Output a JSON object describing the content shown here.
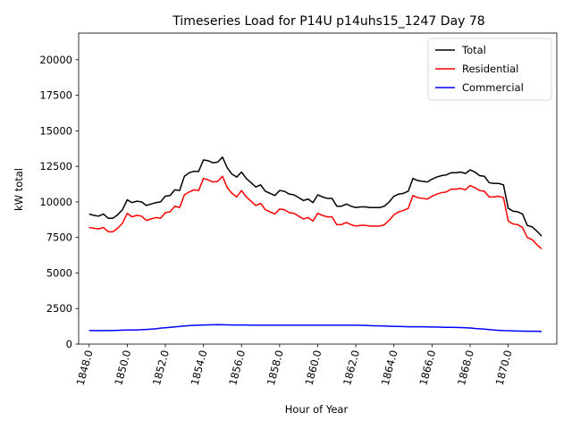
{
  "chart_data": {
    "type": "line",
    "title": "Timeseries Load for P14U p14uhs15_1247  Day 78",
    "xlabel": "Hour of Year",
    "ylabel": "kW total",
    "xlim": [
      1847.45,
      1872.55
    ],
    "ylim": [
      0,
      21875
    ],
    "x_ticks": [
      1848,
      1850,
      1852,
      1854,
      1856,
      1858,
      1860,
      1862,
      1864,
      1866,
      1868,
      1870
    ],
    "x_tick_labels": [
      "1848.0",
      "1850.0",
      "1852.0",
      "1854.0",
      "1856.0",
      "1858.0",
      "1860.0",
      "1862.0",
      "1864.0",
      "1866.0",
      "1868.0",
      "1870.0"
    ],
    "y_ticks": [
      0,
      2500,
      5000,
      7500,
      10000,
      12500,
      15000,
      17500,
      20000
    ],
    "y_tick_labels": [
      "0",
      "2500",
      "5000",
      "7500",
      "10000",
      "12500",
      "15000",
      "17500",
      "20000"
    ],
    "legend_position": "top-right",
    "x_start": 1848.0,
    "x_step": 0.25,
    "series": [
      {
        "name": "Total",
        "color": "#000000",
        "values": [
          9150,
          9050,
          9000,
          9150,
          8850,
          8850,
          9100,
          9450,
          10150,
          9950,
          10050,
          10000,
          9750,
          9850,
          9950,
          10000,
          10400,
          10450,
          10850,
          10800,
          11800,
          12050,
          12150,
          12150,
          12950,
          12900,
          12750,
          12800,
          13150,
          12400,
          11950,
          11750,
          12100,
          11650,
          11350,
          11050,
          11200,
          10750,
          10600,
          10450,
          10800,
          10750,
          10550,
          10500,
          10300,
          10100,
          10200,
          9950,
          10500,
          10350,
          10250,
          10250,
          9700,
          9700,
          9850,
          9700,
          9600,
          9650,
          9650,
          9600,
          9600,
          9600,
          9700,
          10000,
          10400,
          10550,
          10600,
          10750,
          11650,
          11500,
          11450,
          11400,
          11600,
          11750,
          11850,
          11900,
          12050,
          12050,
          12100,
          12000,
          12250,
          12100,
          11850,
          11800,
          11350,
          11300,
          11300,
          11200,
          9550,
          9350,
          9300,
          9150,
          8350,
          8250,
          7950,
          7600
        ]
      },
      {
        "name": "Residential",
        "color": "#ff0000",
        "values": [
          8200,
          8150,
          8100,
          8200,
          7900,
          7900,
          8150,
          8500,
          9200,
          8950,
          9050,
          9000,
          8700,
          8800,
          8900,
          8850,
          9250,
          9300,
          9700,
          9600,
          10500,
          10700,
          10850,
          10800,
          11650,
          11550,
          11400,
          11450,
          11800,
          11000,
          10600,
          10350,
          10800,
          10350,
          10050,
          9750,
          9900,
          9450,
          9300,
          9150,
          9500,
          9450,
          9250,
          9200,
          9000,
          8800,
          8900,
          8650,
          9200,
          9050,
          8950,
          8950,
          8400,
          8400,
          8550,
          8400,
          8300,
          8350,
          8350,
          8300,
          8300,
          8300,
          8400,
          8700,
          9100,
          9300,
          9400,
          9550,
          10450,
          10300,
          10250,
          10200,
          10400,
          10550,
          10650,
          10700,
          10900,
          10900,
          10950,
          10850,
          11150,
          11000,
          10800,
          10750,
          10350,
          10350,
          10400,
          10300,
          8650,
          8450,
          8400,
          8200,
          7500,
          7350,
          7000,
          6700
        ]
      },
      {
        "name": "Commercial",
        "color": "#0000ff",
        "values": [
          950,
          950,
          950,
          950,
          950,
          960,
          970,
          980,
          990,
          990,
          1000,
          1010,
          1030,
          1050,
          1080,
          1120,
          1150,
          1180,
          1210,
          1240,
          1270,
          1300,
          1320,
          1330,
          1340,
          1350,
          1360,
          1370,
          1360,
          1350,
          1340,
          1340,
          1340,
          1340,
          1330,
          1330,
          1330,
          1330,
          1330,
          1330,
          1330,
          1330,
          1330,
          1330,
          1330,
          1330,
          1330,
          1330,
          1330,
          1330,
          1330,
          1330,
          1330,
          1330,
          1330,
          1330,
          1330,
          1320,
          1310,
          1300,
          1290,
          1280,
          1270,
          1260,
          1250,
          1240,
          1230,
          1220,
          1220,
          1220,
          1220,
          1210,
          1200,
          1200,
          1190,
          1180,
          1180,
          1170,
          1160,
          1150,
          1130,
          1100,
          1080,
          1050,
          1020,
          990,
          970,
          950,
          940,
          930,
          920,
          910,
          900,
          900,
          900,
          890
        ]
      }
    ]
  }
}
